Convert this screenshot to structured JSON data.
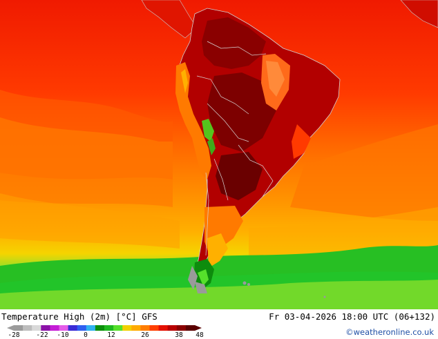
{
  "header": {
    "title": "Temperature High (2m) [°C] GFS",
    "datetime": "Fr 03-04-2026 18:00 UTC (06+132)"
  },
  "legend": {
    "ticks": [
      "-28",
      "-22",
      "-10",
      "0",
      "12",
      "26",
      "38",
      "48"
    ],
    "colors": [
      "#9b9b9b",
      "#bdbdbd",
      "#d9d9d9",
      "#8c12a8",
      "#c51dd6",
      "#e45ce8",
      "#3a2bd6",
      "#2f5ff0",
      "#30b2f0",
      "#0b8f0b",
      "#1fb81f",
      "#55e02b",
      "#f2d000",
      "#ffab00",
      "#ff7d00",
      "#ff3f00",
      "#e41000",
      "#b80000",
      "#8a0000",
      "#5a0000"
    ]
  },
  "credit": "©weatheronline.co.uk"
}
